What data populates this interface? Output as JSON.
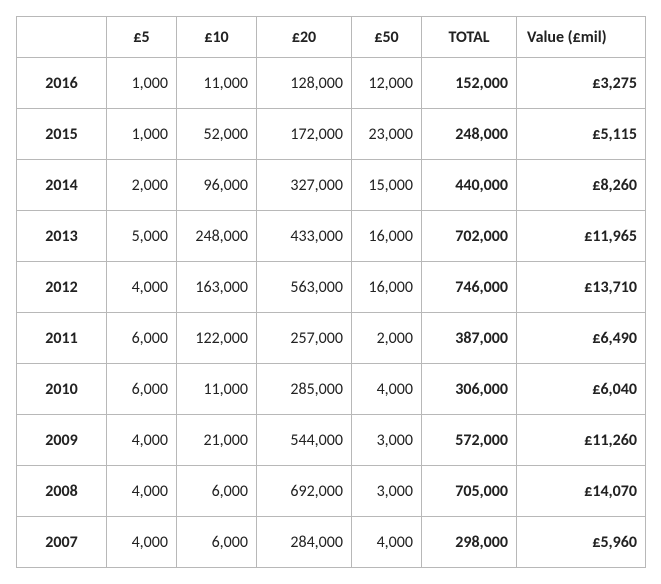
{
  "table": {
    "columns": [
      "",
      "£5",
      "£10",
      "£20",
      "£50",
      "TOTAL",
      "Value (£mil)"
    ],
    "col_classes": [
      "c-year",
      "c-5",
      "c-10",
      "c-20",
      "c-50",
      "c-total",
      "c-value"
    ],
    "cell_classes": [
      "year",
      "num",
      "num",
      "num",
      "num",
      "total",
      "value"
    ],
    "rows": [
      [
        "2016",
        "1,000",
        "11,000",
        "128,000",
        "12,000",
        "152,000",
        "£3,275"
      ],
      [
        "2015",
        "1,000",
        "52,000",
        "172,000",
        "23,000",
        "248,000",
        "£5,115"
      ],
      [
        "2014",
        "2,000",
        "96,000",
        "327,000",
        "15,000",
        "440,000",
        "£8,260"
      ],
      [
        "2013",
        "5,000",
        "248,000",
        "433,000",
        "16,000",
        "702,000",
        "£11,965"
      ],
      [
        "2012",
        "4,000",
        "163,000",
        "563,000",
        "16,000",
        "746,000",
        "£13,710"
      ],
      [
        "2011",
        "6,000",
        "122,000",
        "257,000",
        "2,000",
        "387,000",
        "£6,490"
      ],
      [
        "2010",
        "6,000",
        "11,000",
        "285,000",
        "4,000",
        "306,000",
        "£6,040"
      ],
      [
        "2009",
        "4,000",
        "21,000",
        "544,000",
        "3,000",
        "572,000",
        "£11,260"
      ],
      [
        "2008",
        "4,000",
        "6,000",
        "692,000",
        "3,000",
        "705,000",
        "£14,070"
      ],
      [
        "2007",
        "4,000",
        "6,000",
        "284,000",
        "4,000",
        "298,000",
        "£5,960"
      ]
    ]
  }
}
